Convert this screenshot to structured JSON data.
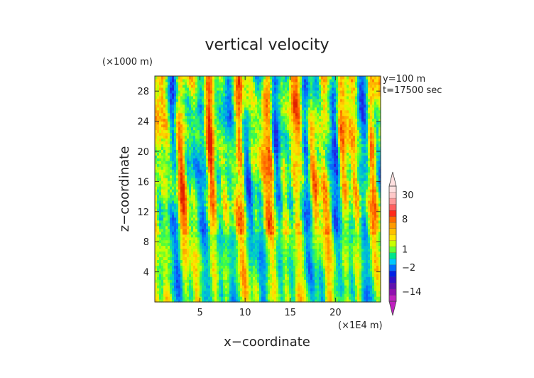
{
  "chart_data": {
    "type": "heatmap",
    "title": "vertical velocity",
    "xlabel": "x−coordinate",
    "ylabel": "z−coordinate",
    "x_scale_label": "(×1E4 m)",
    "y_scale_label": "(×1000 m)",
    "annotations": [
      "y=100 m",
      "t=17500 sec"
    ],
    "x_range": [
      0,
      25
    ],
    "y_range": [
      0,
      30
    ],
    "x_ticks": [
      5,
      10,
      15,
      20
    ],
    "y_ticks": [
      4,
      8,
      12,
      16,
      20,
      24,
      28
    ],
    "colorbar": {
      "tick_labels": [
        {
          "label": "30",
          "value": 30
        },
        {
          "label": "8",
          "value": 8
        },
        {
          "label": "1",
          "value": 1
        },
        {
          "label": "−2",
          "value": -2
        },
        {
          "label": "−14",
          "value": -14
        }
      ],
      "levels": [
        {
          "value": 40,
          "color": "#ffe0e0"
        },
        {
          "value": 30,
          "color": "#ffc8c8"
        },
        {
          "value": 20,
          "color": "#ff9999"
        },
        {
          "value": 14,
          "color": "#ff5f5f"
        },
        {
          "value": 10,
          "color": "#ff2a1a"
        },
        {
          "value": 8,
          "color": "#ff6a00"
        },
        {
          "value": 6,
          "color": "#ff9a00"
        },
        {
          "value": 4,
          "color": "#ffc000"
        },
        {
          "value": 3,
          "color": "#ffe600"
        },
        {
          "value": 2,
          "color": "#c8ff00"
        },
        {
          "value": 1,
          "color": "#66ff33"
        },
        {
          "value": 0,
          "color": "#00e68a"
        },
        {
          "value": -1,
          "color": "#00c8ff"
        },
        {
          "value": -2,
          "color": "#0070ff"
        },
        {
          "value": -4,
          "color": "#0020e6"
        },
        {
          "value": -6,
          "color": "#3010c8"
        },
        {
          "value": -8,
          "color": "#6010b0"
        },
        {
          "value": -14,
          "color": "#9010b0"
        },
        {
          "value": -20,
          "color": "#c020c0"
        }
      ]
    },
    "colormap": [
      {
        "v": 0.0,
        "color": "#2020e0"
      },
      {
        "v": 0.18,
        "color": "#0080ff"
      },
      {
        "v": 0.33,
        "color": "#00d0c8"
      },
      {
        "v": 0.45,
        "color": "#40ff40"
      },
      {
        "v": 0.55,
        "color": "#c8ff00"
      },
      {
        "v": 0.63,
        "color": "#ffe600"
      },
      {
        "v": 0.75,
        "color": "#ffa000"
      },
      {
        "v": 0.88,
        "color": "#ff6000"
      },
      {
        "v": 1.0,
        "color": "#e02000"
      }
    ]
  }
}
